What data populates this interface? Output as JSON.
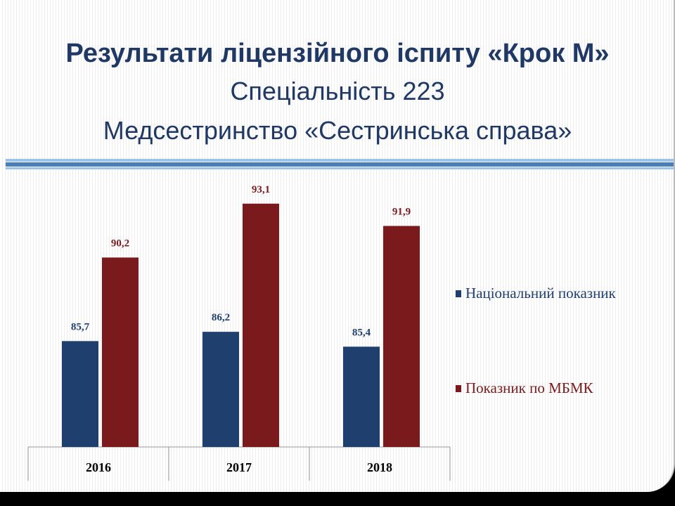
{
  "chart_data": {
    "type": "bar",
    "title": "Результати  ліцензійного іспиту «Крок М»",
    "subtitle": [
      "Спеціальність 223",
      "Медсестринство «Сестринська справа»"
    ],
    "categories": [
      "2016",
      "2017",
      "2018"
    ],
    "series": [
      {
        "name": "Національний показник",
        "color": "#1f3f6e",
        "values": [
          85.7,
          86.2,
          85.4
        ],
        "value_labels": [
          "85,7",
          "86,2",
          "85,4"
        ]
      },
      {
        "name": "Показник по МБМК",
        "color": "#7a1a1c",
        "values": [
          90.2,
          93.1,
          91.9
        ],
        "value_labels": [
          "90,2",
          "93,1",
          "91,9"
        ]
      }
    ],
    "ylim": [
      80,
      94
    ],
    "legend": "right"
  }
}
